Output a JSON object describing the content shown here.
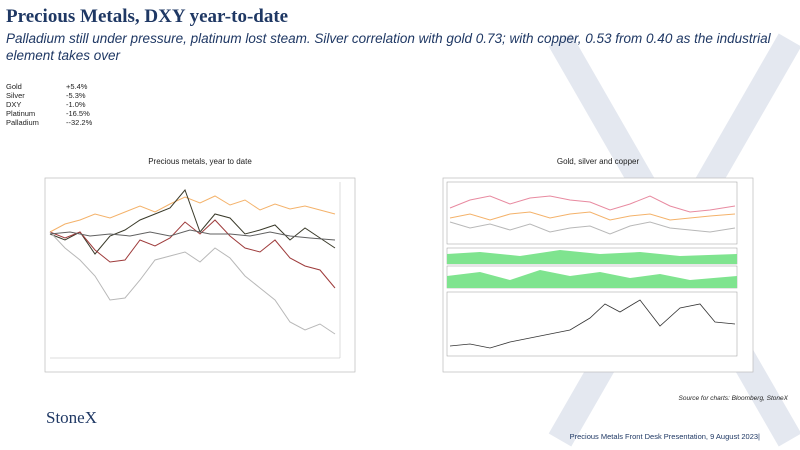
{
  "header": {
    "title": "Precious Metals, DXY year-to-date",
    "subtitle": "Palladium still under pressure, platinum lost steam.  Silver correlation with gold 0.73; with copper, 0.53 from 0.40 as the industrial element takes over"
  },
  "performance": [
    [
      "Gold",
      "+5.4%"
    ],
    [
      "Silver",
      "-5.3%"
    ],
    [
      "DXY",
      "-1.0%"
    ],
    [
      "Platinum",
      "-16.5%"
    ],
    [
      "Palladium",
      "--32.2%"
    ]
  ],
  "charts": [
    {
      "title": "Precious metals, year to date"
    },
    {
      "title": "Gold, silver and copper"
    }
  ],
  "source": "Source for charts: Bloomberg, StoneX",
  "logo": "StoneX",
  "footer": "Precious Metals Front Desk Presentation, 9 August 2023|"
}
